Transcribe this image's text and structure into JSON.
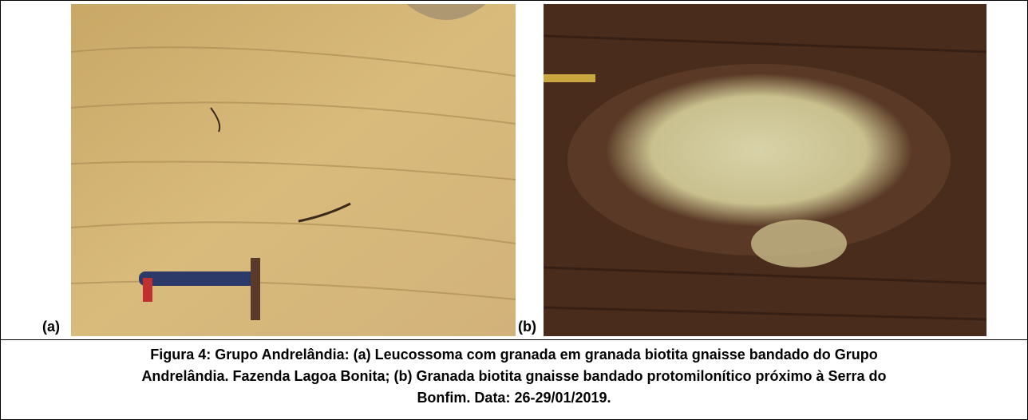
{
  "figure": {
    "panels": [
      {
        "label": "(a)"
      },
      {
        "label": "(b)"
      }
    ],
    "caption": [
      "Figura 4: Grupo Andrelândia: (a) Leucossoma com granada em granada biotita gnaisse bandado do Grupo",
      "Andrelândia. Fazenda Lagoa Bonita; (b) Granada biotita gnaisse bandado protomilonítico próximo à Serra do",
      "Bonfim. Data: 26-29/01/2019."
    ]
  }
}
